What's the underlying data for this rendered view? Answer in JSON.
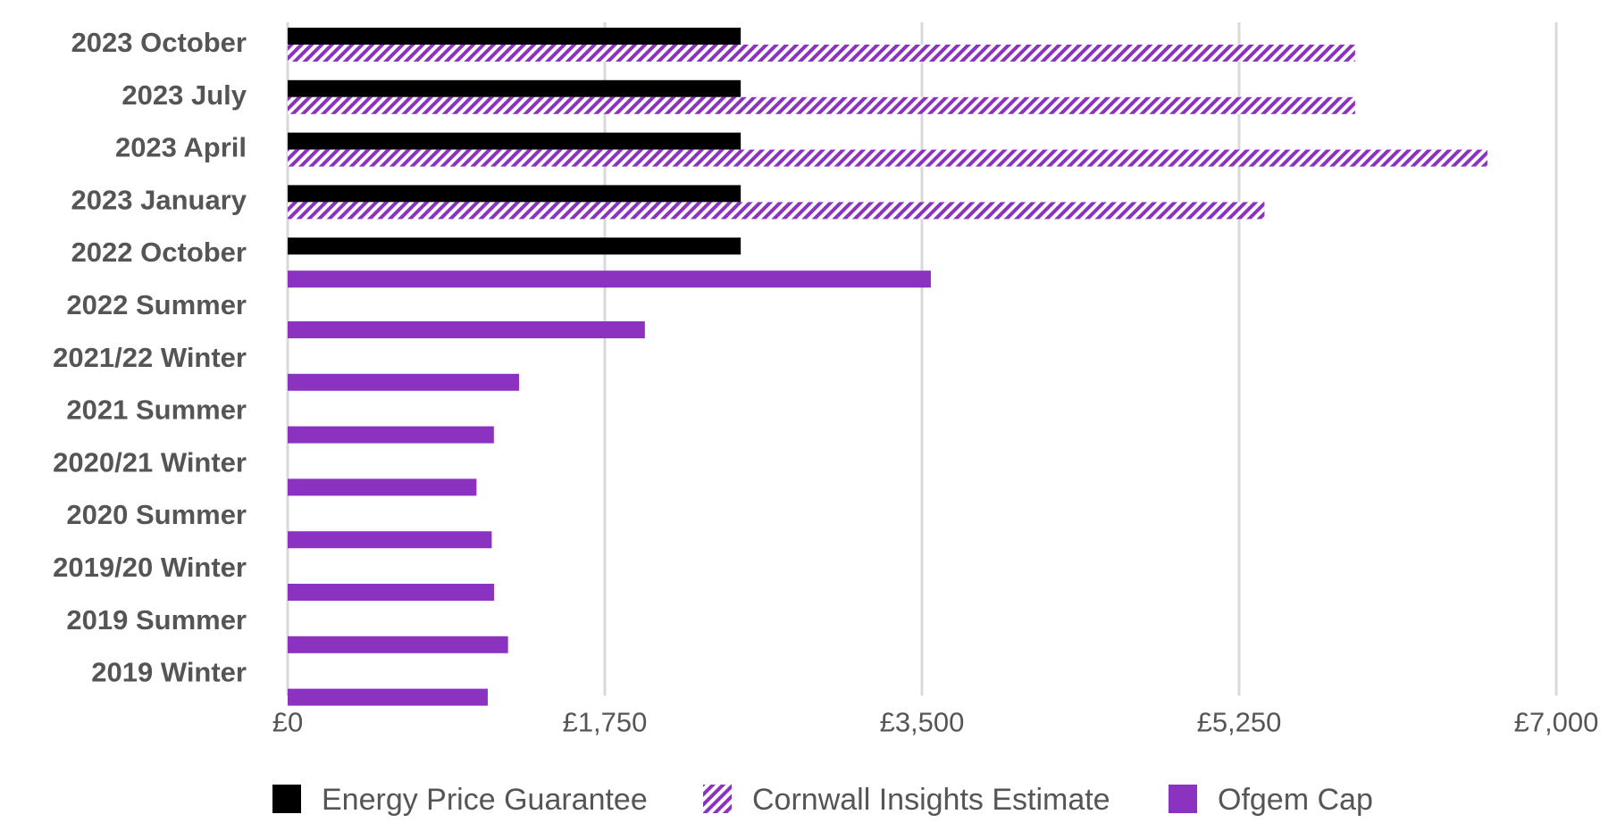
{
  "chart_data": {
    "type": "bar",
    "orientation": "horizontal",
    "categories": [
      "2023 October",
      "2023 July",
      "2023 April",
      "2023 January",
      "2022 October",
      "2022 Summer",
      "2021/22 Winter",
      "2021 Summer",
      "2020/21 Winter",
      "2020 Summer",
      "2019/20 Winter",
      "2019 Summer",
      "2019 Winter"
    ],
    "series": [
      {
        "name": "Energy Price Guarantee",
        "color": "#000000",
        "pattern": "solid",
        "values": [
          2500,
          2500,
          2500,
          2500,
          2500,
          null,
          null,
          null,
          null,
          null,
          null,
          null,
          null
        ]
      },
      {
        "name": "Cornwall Insights Estimate",
        "color": "#8b32c0",
        "pattern": "hatched",
        "values": [
          5890,
          5890,
          6620,
          5390,
          null,
          null,
          null,
          null,
          null,
          null,
          null,
          null,
          null
        ]
      },
      {
        "name": "Ofgem Cap",
        "color": "#8b32c0",
        "pattern": "solid",
        "values": [
          null,
          null,
          null,
          null,
          3549,
          1971,
          1277,
          1138,
          1042,
          1126,
          1139,
          1216,
          1104
        ]
      }
    ],
    "xlim": [
      0,
      7000
    ],
    "x_ticks": [
      0,
      1750,
      3500,
      5250,
      7000
    ],
    "x_tick_labels": [
      "£0",
      "£1,750",
      "£3,500",
      "£5,250",
      "£7,000"
    ],
    "grid": "vertical",
    "legend_position": "bottom",
    "title": "",
    "xlabel": "",
    "ylabel": ""
  }
}
